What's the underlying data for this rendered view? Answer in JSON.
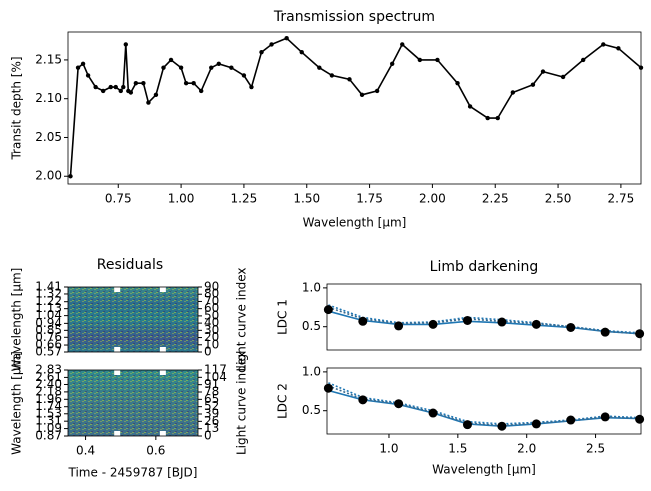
{
  "chart_data": [
    {
      "type": "line",
      "title": "Transmission spectrum",
      "xlabel": "Wavelength [μm]",
      "ylabel": "Transit depth [%]",
      "x": [
        0.56,
        0.59,
        0.61,
        0.63,
        0.66,
        0.69,
        0.72,
        0.74,
        0.76,
        0.77,
        0.78,
        0.79,
        0.8,
        0.82,
        0.85,
        0.87,
        0.9,
        0.93,
        0.96,
        1.0,
        1.02,
        1.05,
        1.08,
        1.12,
        1.15,
        1.2,
        1.25,
        1.28,
        1.32,
        1.36,
        1.42,
        1.48,
        1.55,
        1.6,
        1.67,
        1.72,
        1.78,
        1.84,
        1.88,
        1.95,
        2.02,
        2.1,
        2.15,
        2.22,
        2.26,
        2.32,
        2.4,
        2.44,
        2.52,
        2.6,
        2.68,
        2.74,
        2.83
      ],
      "series": [
        {
          "color": "#000000",
          "marker": true,
          "line": true,
          "values": [
            2.0,
            2.14,
            2.145,
            2.13,
            2.115,
            2.11,
            2.115,
            2.115,
            2.11,
            2.115,
            2.17,
            2.11,
            2.108,
            2.12,
            2.12,
            2.095,
            2.105,
            2.14,
            2.15,
            2.14,
            2.12,
            2.12,
            2.11,
            2.14,
            2.145,
            2.14,
            2.13,
            2.115,
            2.16,
            2.17,
            2.178,
            2.16,
            2.14,
            2.13,
            2.125,
            2.105,
            2.11,
            2.145,
            2.17,
            2.15,
            2.15,
            2.12,
            2.09,
            2.075,
            2.075,
            2.108,
            2.118,
            2.135,
            2.128,
            2.15,
            2.17,
            2.165,
            2.14
          ]
        }
      ],
      "xlim": [
        0.55,
        2.83
      ],
      "ylim": [
        1.99,
        2.186
      ],
      "xticks": [
        0.75,
        {
          "value": 1,
          "label": "1.00"
        },
        1.25,
        {
          "value": 1.5,
          "label": "1.50"
        },
        1.75,
        {
          "value": 2,
          "label": "2.00"
        },
        2.25,
        {
          "value": 2.5,
          "label": "2.50"
        },
        2.75
      ],
      "yticks": [
        {
          "value": 2,
          "label": "2.00"
        },
        2.05,
        {
          "value": 2.1,
          "label": "2.10"
        },
        2.15
      ]
    },
    {
      "type": "heatmap",
      "title": "Residuals",
      "ylabel": "Wavelength [μm]",
      "y2label": "Light curve index",
      "xlim": [
        0.35,
        0.72
      ],
      "ylim": [
        0.57,
        1.41
      ],
      "y2lim": [
        0,
        90
      ],
      "yticks": [
        0.57,
        0.66,
        0.76,
        0.85,
        0.94,
        1.04,
        1.13,
        1.22,
        1.32,
        1.41
      ],
      "y2ticks": [
        0,
        10,
        20,
        30,
        40,
        50,
        60,
        70,
        80,
        90
      ]
    },
    {
      "type": "heatmap",
      "xlabel": "Time - 2459787 [BJD]",
      "ylabel": "Wavelength [μm]",
      "y2label": "Light curve index",
      "xlim": [
        0.35,
        0.72
      ],
      "ylim": [
        0.87,
        2.83
      ],
      "y2lim": [
        0,
        117
      ],
      "xticks": [
        0.4,
        0.6
      ],
      "yticks": [
        0.87,
        1.09,
        1.31,
        1.53,
        1.74,
        1.96,
        2.18,
        {
          "value": 2.4,
          "label": "2.40"
        },
        2.61,
        2.83
      ],
      "y2ticks": [
        0,
        13,
        26,
        39,
        52,
        65,
        78,
        91,
        104,
        117
      ]
    },
    {
      "type": "line",
      "title": "Limb darkening",
      "ylabel": "LDC 1",
      "x": [
        0.56,
        0.81,
        1.07,
        1.32,
        1.57,
        1.82,
        2.07,
        2.32,
        2.57,
        2.82
      ],
      "series": [
        {
          "color": "#1f77b4",
          "line": true,
          "values": [
            0.7,
            0.58,
            0.53,
            0.53,
            0.57,
            0.55,
            0.52,
            0.49,
            0.44,
            0.41
          ]
        },
        {
          "color": "#1f77b4",
          "line": true,
          "dotted": true,
          "values": [
            0.78,
            0.62,
            0.55,
            0.56,
            0.62,
            0.59,
            0.55,
            0.5,
            0.45,
            0.42
          ]
        },
        {
          "color": "#3a6a8e",
          "line": true,
          "dotted": true,
          "values": [
            0.75,
            0.6,
            0.54,
            0.55,
            0.6,
            0.57,
            0.54,
            0.5,
            0.44,
            0.41
          ]
        },
        {
          "color": "#000000",
          "marker": true,
          "values": [
            0.72,
            0.57,
            0.51,
            0.53,
            0.58,
            0.56,
            0.53,
            0.49,
            0.43,
            0.41
          ]
        }
      ],
      "xlim": [
        0.55,
        2.83
      ],
      "ylim": [
        0.2,
        1.05
      ],
      "yticks": [
        0.5,
        {
          "value": 1,
          "label": "1.0"
        }
      ]
    },
    {
      "type": "line",
      "xlabel": "Wavelength [μm]",
      "ylabel": "LDC 2",
      "x": [
        0.56,
        0.81,
        1.07,
        1.32,
        1.57,
        1.82,
        2.07,
        2.32,
        2.57,
        2.82
      ],
      "series": [
        {
          "color": "#1f77b4",
          "line": true,
          "values": [
            0.76,
            0.64,
            0.58,
            0.47,
            0.33,
            0.3,
            0.33,
            0.37,
            0.41,
            0.4
          ]
        },
        {
          "color": "#1f77b4",
          "line": true,
          "dotted": true,
          "values": [
            0.86,
            0.67,
            0.6,
            0.5,
            0.36,
            0.33,
            0.35,
            0.38,
            0.43,
            0.41
          ]
        },
        {
          "color": "#3a6a8e",
          "line": true,
          "dotted": true,
          "values": [
            0.82,
            0.65,
            0.59,
            0.48,
            0.34,
            0.31,
            0.34,
            0.37,
            0.42,
            0.4
          ]
        },
        {
          "color": "#000000",
          "marker": true,
          "values": [
            0.79,
            0.64,
            0.59,
            0.47,
            0.32,
            0.3,
            0.33,
            0.38,
            0.42,
            0.39
          ]
        }
      ],
      "xlim": [
        0.55,
        2.83
      ],
      "ylim": [
        0.2,
        1.05
      ],
      "xticks": [
        {
          "value": 1,
          "label": "1.0"
        },
        1.5,
        {
          "value": 2,
          "label": "2.0"
        },
        2.5
      ],
      "yticks": [
        0.5,
        {
          "value": 1,
          "label": "1.0"
        }
      ]
    }
  ]
}
